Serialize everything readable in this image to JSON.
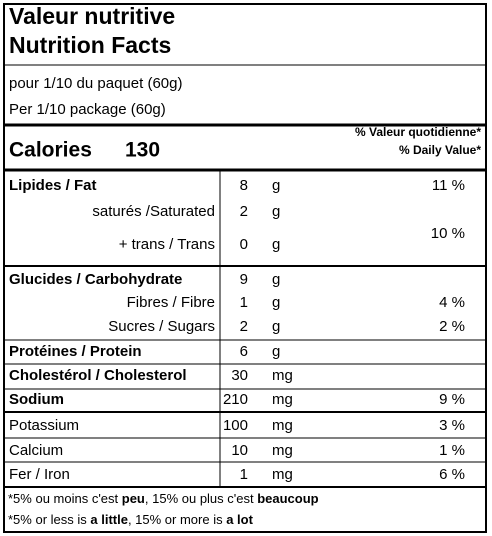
{
  "header": {
    "title_fr": "Valeur nutritive",
    "title_en": "Nutrition Facts",
    "serving_fr": "pour 1/10 du paquet (60g)",
    "serving_en": "Per 1/10 package (60g)"
  },
  "calories": {
    "label": "Calories",
    "value": 130
  },
  "daily_value_header": {
    "fr": "% Valeur quotidienne*",
    "en": "% Daily Value*"
  },
  "nutrients": [
    {
      "name": "Lipides / Fat",
      "bold": true,
      "amount": 8,
      "unit": "g",
      "dv": "11 %"
    },
    {
      "name": "saturés /Saturated",
      "indent": true,
      "amount": 2,
      "unit": "g"
    },
    {
      "name": "+ trans / Trans",
      "indent": true,
      "amount": 0,
      "unit": "g"
    },
    {
      "name": "Glucides / Carbohydrate",
      "bold": true,
      "amount": 9,
      "unit": "g"
    },
    {
      "name": "Fibres / Fibre",
      "indent": true,
      "amount": 1,
      "unit": "g",
      "dv": "4 %"
    },
    {
      "name": "Sucres / Sugars",
      "indent": true,
      "amount": 2,
      "unit": "g",
      "dv": "2 %"
    },
    {
      "name": "Protéines / Protein",
      "bold": true,
      "amount": 6,
      "unit": "g"
    },
    {
      "name": "Cholestérol / Cholesterol",
      "bold": true,
      "amount": 30,
      "unit": "mg"
    },
    {
      "name": "Sodium",
      "bold": true,
      "amount": 210,
      "unit": "mg",
      "dv": "9 %"
    },
    {
      "name": "Potassium",
      "amount": 100,
      "unit": "mg",
      "dv": "3 %"
    },
    {
      "name": "Calcium",
      "amount": 10,
      "unit": "mg",
      "dv": "1 %"
    },
    {
      "name": "Fer / Iron",
      "amount": 1,
      "unit": "mg",
      "dv": "6 %"
    }
  ],
  "saturated_trans_dv": "10 %",
  "footnotes": [
    [
      {
        "text": "*5% ou moins c'est "
      },
      {
        "text": "peu",
        "bold": true
      },
      {
        "text": ", 15% ou plus c'est "
      },
      {
        "text": "beaucoup",
        "bold": true
      }
    ],
    [
      {
        "text": "*5% or less is "
      },
      {
        "text": "a little",
        "bold": true
      },
      {
        "text": ", 15% or more is "
      },
      {
        "text": "a lot",
        "bold": true
      }
    ]
  ]
}
